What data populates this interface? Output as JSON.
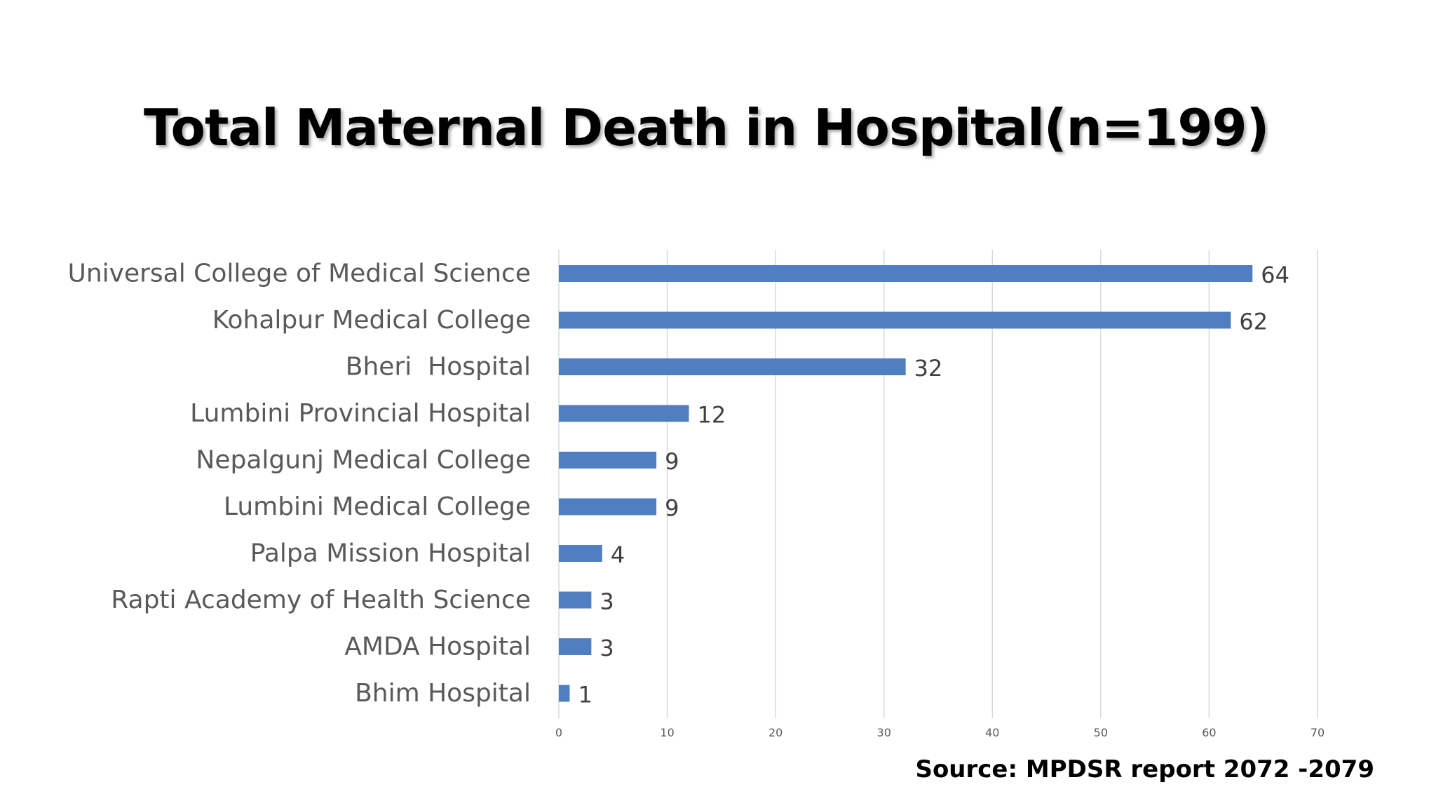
{
  "slide": {
    "title": "Total Maternal Death in Hospital(n=199)",
    "source": "Source: MPDSR report 2072 -2079"
  },
  "chart_data": {
    "type": "bar",
    "orientation": "horizontal",
    "title": "Total Maternal Death in Hospital(n=199)",
    "categories": [
      "Universal College of Medical Science",
      "Kohalpur Medical College",
      "Bheri  Hospital",
      "Lumbini Provincial Hospital",
      "Nepalgunj Medical College",
      "Lumbini Medical College",
      "Palpa Mission Hospital",
      "Rapti Academy of Health Science",
      "AMDA Hospital",
      "Bhim Hospital"
    ],
    "values": [
      64,
      62,
      32,
      12,
      9,
      9,
      4,
      3,
      3,
      1
    ],
    "xlim": [
      0,
      70
    ],
    "xticks": [
      0,
      10,
      20,
      30,
      40,
      50,
      60,
      70
    ],
    "xlabel": "",
    "ylabel": "",
    "grid": true,
    "legend": "none",
    "bar_color": "#4F7FC0",
    "grid_color": "#D9D9D9"
  }
}
